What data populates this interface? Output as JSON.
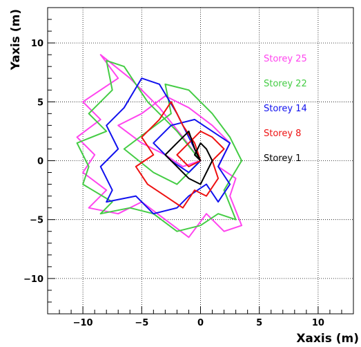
{
  "chart_data": {
    "type": "line",
    "title": "",
    "xlabel": "Xaxis (m)",
    "ylabel": "Yaxis (m)",
    "xlim": [
      -13,
      13
    ],
    "ylim": [
      -13,
      13
    ],
    "xticks": [
      -10,
      -5,
      0,
      5,
      10
    ],
    "yticks": [
      -10,
      -5,
      0,
      5,
      10
    ],
    "xtick_labels": [
      "−10",
      "−5",
      "0",
      "5",
      "10"
    ],
    "ytick_labels": [
      "−10",
      "−5",
      "0",
      "5",
      "10"
    ],
    "grid": true,
    "legend_position": "top-right",
    "series": [
      {
        "name": "Storey 25",
        "color": "#ff44ee",
        "points": [
          [
            0,
            0
          ],
          [
            -1.5,
            2.0
          ],
          [
            -3.5,
            4.5
          ],
          [
            -6.0,
            7.0
          ],
          [
            -8.5,
            9.0
          ],
          [
            -7.0,
            7.0
          ],
          [
            -10.0,
            5.0
          ],
          [
            -8.5,
            3.5
          ],
          [
            -10.5,
            2.0
          ],
          [
            -9.0,
            0.5
          ],
          [
            -10.0,
            -1.0
          ],
          [
            -8.0,
            -2.5
          ],
          [
            -9.5,
            -4.0
          ],
          [
            -7.0,
            -4.5
          ],
          [
            -5.0,
            -3.5
          ],
          [
            -3.0,
            -5.0
          ],
          [
            -1.0,
            -6.5
          ],
          [
            0.5,
            -4.5
          ],
          [
            2.0,
            -6.0
          ],
          [
            3.5,
            -5.5
          ],
          [
            2.5,
            -3.0
          ],
          [
            3.0,
            -1.5
          ],
          [
            1.5,
            -0.5
          ],
          [
            2.5,
            1.5
          ],
          [
            1.0,
            3.0
          ],
          [
            -1.0,
            4.5
          ],
          [
            -3.0,
            5.5
          ],
          [
            -5.0,
            4.0
          ],
          [
            -7.0,
            3.0
          ],
          [
            -5.0,
            1.5
          ],
          [
            -3.0,
            0.5
          ],
          [
            -1.5,
            -0.5
          ],
          [
            0,
            0
          ]
        ]
      },
      {
        "name": "Storey 22",
        "color": "#44cc44",
        "points": [
          [
            0,
            0
          ],
          [
            -2.0,
            2.5
          ],
          [
            -4.5,
            5.0
          ],
          [
            -6.5,
            8.0
          ],
          [
            -8.0,
            8.5
          ],
          [
            -7.5,
            6.0
          ],
          [
            -9.5,
            4.0
          ],
          [
            -8.0,
            2.5
          ],
          [
            -10.5,
            1.5
          ],
          [
            -9.5,
            -0.5
          ],
          [
            -10.0,
            -2.0
          ],
          [
            -7.5,
            -3.5
          ],
          [
            -8.5,
            -4.5
          ],
          [
            -6.0,
            -4.0
          ],
          [
            -4.0,
            -4.5
          ],
          [
            -2.0,
            -6.0
          ],
          [
            0,
            -5.5
          ],
          [
            1.5,
            -4.5
          ],
          [
            3.0,
            -5.0
          ],
          [
            2.0,
            -2.5
          ],
          [
            3.5,
            0
          ],
          [
            2.5,
            2.0
          ],
          [
            1.0,
            4.0
          ],
          [
            -1.0,
            6.0
          ],
          [
            -3.0,
            6.5
          ],
          [
            -2.5,
            4.0
          ],
          [
            -4.5,
            2.5
          ],
          [
            -6.5,
            1.0
          ],
          [
            -4.0,
            -1.0
          ],
          [
            -2.0,
            -2.0
          ],
          [
            0,
            0
          ]
        ]
      },
      {
        "name": "Storey 14",
        "color": "#1111ee",
        "points": [
          [
            0,
            0
          ],
          [
            -1.0,
            2.0
          ],
          [
            -2.0,
            4.0
          ],
          [
            -3.5,
            6.5
          ],
          [
            -5.0,
            7.0
          ],
          [
            -6.5,
            4.5
          ],
          [
            -8.0,
            3.0
          ],
          [
            -7.0,
            1.0
          ],
          [
            -8.5,
            -0.5
          ],
          [
            -7.5,
            -2.5
          ],
          [
            -8.0,
            -3.5
          ],
          [
            -5.5,
            -3.0
          ],
          [
            -4.0,
            -4.5
          ],
          [
            -2.0,
            -4.0
          ],
          [
            -1.0,
            -3.0
          ],
          [
            0.5,
            -2.0
          ],
          [
            1.5,
            -3.5
          ],
          [
            2.5,
            -2.0
          ],
          [
            1.5,
            -0.5
          ],
          [
            2.5,
            1.5
          ],
          [
            1.0,
            2.5
          ],
          [
            -0.5,
            3.5
          ],
          [
            -2.5,
            3.0
          ],
          [
            -4.0,
            1.5
          ],
          [
            -2.5,
            0
          ],
          [
            -1.0,
            -1.0
          ],
          [
            0,
            0
          ]
        ]
      },
      {
        "name": "Storey 8",
        "color": "#ee1111",
        "points": [
          [
            0,
            0
          ],
          [
            -0.5,
            1.5
          ],
          [
            -1.5,
            3.0
          ],
          [
            -2.5,
            5.0
          ],
          [
            -3.5,
            3.5
          ],
          [
            -5.0,
            2.0
          ],
          [
            -4.0,
            0.5
          ],
          [
            -5.5,
            -0.5
          ],
          [
            -4.5,
            -2.0
          ],
          [
            -3.0,
            -3.0
          ],
          [
            -1.5,
            -4.0
          ],
          [
            -0.5,
            -2.5
          ],
          [
            0.5,
            -3.0
          ],
          [
            1.5,
            -1.5
          ],
          [
            1.0,
            0
          ],
          [
            2.0,
            1.0
          ],
          [
            1.0,
            2.0
          ],
          [
            0,
            2.5
          ],
          [
            -1.0,
            1.5
          ],
          [
            -2.0,
            0.5
          ],
          [
            -1.0,
            -0.5
          ],
          [
            0,
            0
          ]
        ]
      },
      {
        "name": "Storey 1",
        "color": "#000000",
        "points": [
          [
            0,
            0
          ],
          [
            -0.5,
            1.0
          ],
          [
            -1.0,
            2.5
          ],
          [
            -2.0,
            1.5
          ],
          [
            -3.0,
            0.5
          ],
          [
            -2.0,
            -0.5
          ],
          [
            -1.0,
            -1.5
          ],
          [
            0,
            -2.0
          ],
          [
            0.5,
            -1.0
          ],
          [
            1.0,
            0
          ],
          [
            0.5,
            1.0
          ],
          [
            0,
            1.5
          ],
          [
            -0.5,
            0.5
          ],
          [
            0,
            0
          ]
        ]
      }
    ]
  }
}
